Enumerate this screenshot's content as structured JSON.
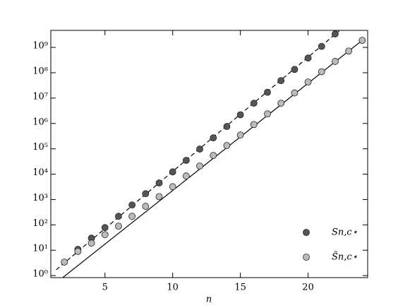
{
  "chart_data": {
    "type": "scatter",
    "x_label": "n",
    "xlim": [
      1.0,
      24.4
    ],
    "xticks": [
      5,
      10,
      15,
      20
    ],
    "ylim": [
      0.83,
      4700000000
    ],
    "yticks": [
      {
        "value": 1,
        "label": "10⁰"
      },
      {
        "value": 10,
        "label": "10¹"
      },
      {
        "value": 100,
        "label": "10²"
      },
      {
        "value": 1000,
        "label": "10³"
      },
      {
        "value": 10000,
        "label": "10⁴"
      },
      {
        "value": 100000,
        "label": "10⁵"
      },
      {
        "value": 1000000,
        "label": "10⁶"
      },
      {
        "value": 10000000,
        "label": "10⁷"
      },
      {
        "value": 100000000,
        "label": "10⁸"
      },
      {
        "value": 1000000000,
        "label": "10⁹"
      }
    ],
    "log_y": true,
    "legend": "lower right",
    "series": [
      {
        "name": "Sn,c⋆",
        "color": "#555555",
        "x": [
          3,
          4,
          5,
          6,
          7,
          8,
          9,
          10,
          11,
          12,
          13,
          14,
          15,
          16,
          17,
          18,
          19,
          20,
          21,
          22
        ],
        "values": [
          10.8,
          30,
          78,
          218,
          610,
          1700,
          4500,
          12300,
          35000,
          98000,
          270000,
          760000,
          2200000,
          6300000,
          17000000,
          49000000,
          135000000,
          380000000,
          1100000000,
          3400000000
        ]
      },
      {
        "name": "S̃n,c⋆",
        "color": "#bbbbbb",
        "x": [
          2,
          3,
          4,
          5,
          6,
          7,
          8,
          9,
          10,
          11,
          12,
          13,
          14,
          15,
          16,
          17,
          18,
          19,
          20,
          21,
          22,
          23,
          24
        ],
        "values": [
          3.4,
          9,
          19,
          41,
          89,
          218,
          540,
          1300,
          3200,
          8500,
          21000,
          55000,
          135000,
          350000,
          910000,
          2400000,
          6300000,
          16000000,
          43000000,
          110000000,
          280000000,
          720000000,
          1900000000
        ]
      }
    ],
    "fit_lines": [
      {
        "style": "dashed",
        "x": [
          1.4,
          22.3
        ],
        "values": [
          1.7,
          4500000000
        ]
      },
      {
        "style": "solid",
        "x": [
          1.9,
          24.0
        ],
        "values": [
          0.85,
          1900000000
        ]
      }
    ]
  }
}
